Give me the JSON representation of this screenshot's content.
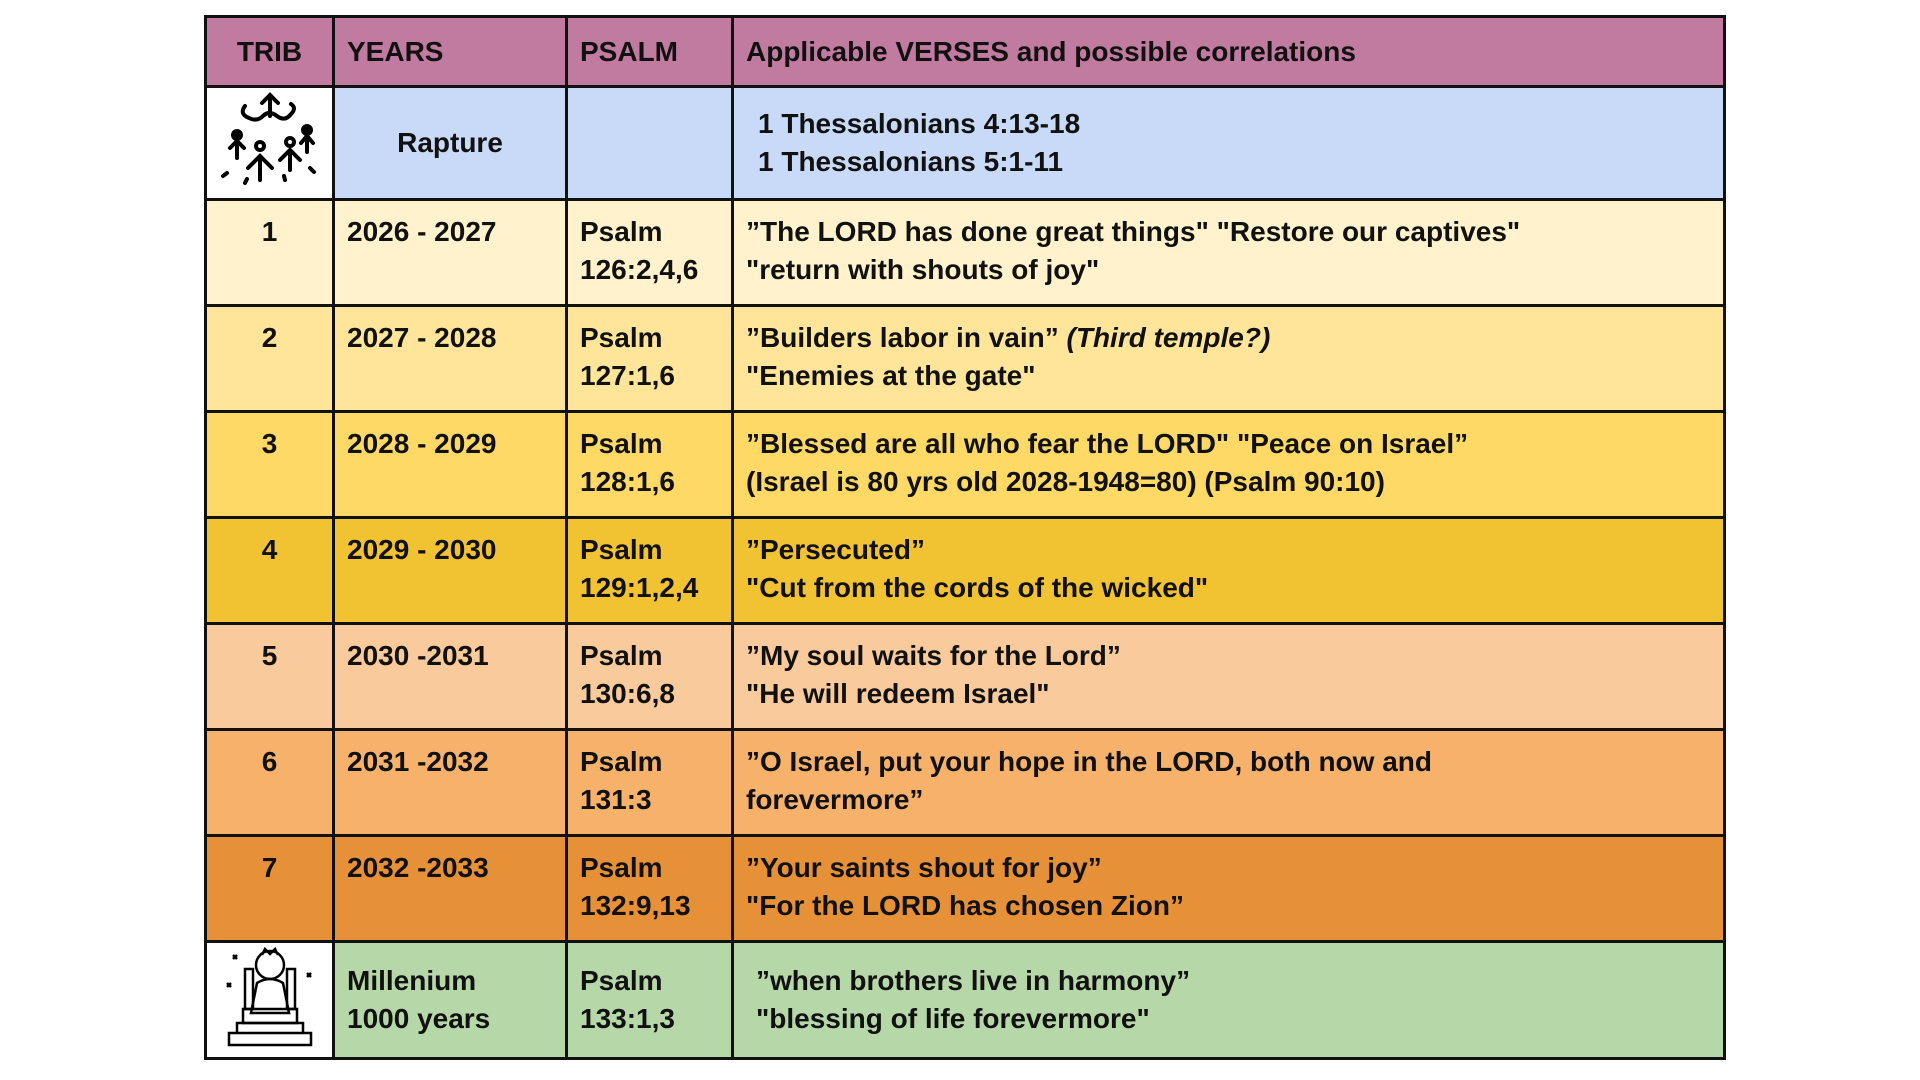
{
  "header": {
    "trib": "TRIB",
    "years": "YEARS",
    "psalm": "PSALM",
    "verses": "Applicable VERSES and possible correlations"
  },
  "rapture": {
    "icon": "rapture-icon",
    "years": "Rapture",
    "psalm": "",
    "verses": [
      "1 Thessalonians 4:13-18",
      "1 Thessalonians 5:1-11"
    ],
    "color": "#C9DAF8"
  },
  "rows": [
    {
      "trib": "1",
      "years": "2026 - 2027",
      "psalm": [
        "Psalm",
        "126:2,4,6"
      ],
      "verses": [
        "”The LORD has done great things\" \"Restore our captives\"",
        "\"return with shouts of joy\""
      ],
      "italic": "",
      "color": "#FFF2CC"
    },
    {
      "trib": "2",
      "years": "2027 - 2028",
      "psalm": [
        "Psalm",
        "127:1,6"
      ],
      "verses": [
        "”Builders labor in vain” ",
        "\"Enemies at the gate\""
      ],
      "italic": "(Third temple?)",
      "color": "#FFE599"
    },
    {
      "trib": "3",
      "years": "2028 - 2029",
      "psalm": [
        "Psalm",
        "128:1,6"
      ],
      "verses": [
        "”Blessed are all who fear the LORD\" \"Peace on Israel”",
        "(Israel is 80 yrs old 2028-1948=80) (Psalm 90:10)"
      ],
      "italic": "",
      "color": "#FFD966"
    },
    {
      "trib": "4",
      "years": "2029 - 2030",
      "psalm": [
        "Psalm",
        "129:1,2,4"
      ],
      "verses": [
        "”Persecuted”",
        "\"Cut from the cords of the wicked\""
      ],
      "italic": "",
      "color": "#F1C232"
    },
    {
      "trib": "5",
      "years": "2030 -2031",
      "psalm": [
        "Psalm",
        "130:6,8"
      ],
      "verses": [
        "”My soul waits for the Lord”",
        "\"He will redeem Israel\""
      ],
      "italic": "",
      "color": "#F9CB9C"
    },
    {
      "trib": "6",
      "years": "2031 -2032",
      "psalm": [
        "Psalm",
        "131:3"
      ],
      "verses": [
        "”O Israel, put your hope in the LORD, both now and",
        "forevermore”"
      ],
      "italic": "",
      "color": "#F6B26B"
    },
    {
      "trib": "7",
      "years": "2032 -2033",
      "psalm": [
        "Psalm",
        "132:9,13"
      ],
      "verses": [
        "”Your saints shout for joy”",
        "\"For the LORD has chosen Zion”"
      ],
      "italic": "",
      "color": "#E69138"
    }
  ],
  "millenium": {
    "icon": "throne-icon",
    "years": [
      "Millenium",
      "1000 years"
    ],
    "psalm": [
      "Psalm",
      "133:1,3"
    ],
    "verses": [
      "”when brothers live in harmony”",
      "\"blessing of life forevermore\""
    ],
    "color": "#B6D7A8"
  },
  "colors": {
    "header": "#C27BA0",
    "border": "#111111"
  }
}
